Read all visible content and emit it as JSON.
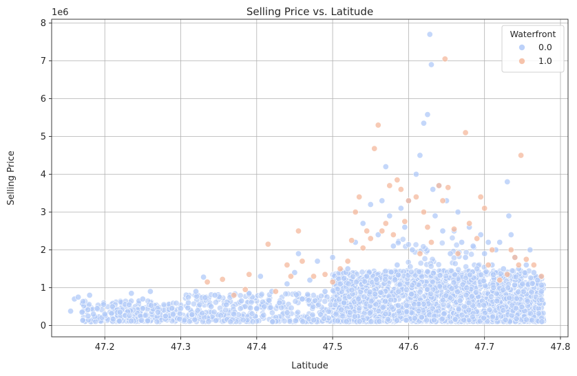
{
  "chart_data": {
    "type": "scatter",
    "title": "Selling Price vs. Latitude",
    "xlabel": "Latitude",
    "ylabel": "Selling Price",
    "y_offset_label": "1e6",
    "xlim": [
      47.13,
      47.81
    ],
    "ylim": [
      -0.3,
      8.1
    ],
    "x_ticks": [
      47.2,
      47.3,
      47.4,
      47.5,
      47.6,
      47.7,
      47.8
    ],
    "x_tick_labels": [
      "47.2",
      "47.3",
      "47.4",
      "47.5",
      "47.6",
      "47.7",
      "47.8"
    ],
    "y_ticks": [
      0,
      1,
      2,
      3,
      4,
      5,
      6,
      7,
      8
    ],
    "y_tick_labels": [
      "0",
      "1",
      "2",
      "3",
      "4",
      "5",
      "6",
      "7",
      "8"
    ],
    "grid": true,
    "legend": {
      "title": "Waterfront",
      "placement": "top-right",
      "entries": [
        "0.0",
        "1.0"
      ]
    },
    "series": [
      {
        "name": "0.0",
        "color": "#b0c9f8",
        "points": [
          [
            47.155,
            0.38
          ],
          [
            47.16,
            0.7
          ],
          [
            47.165,
            0.75
          ],
          [
            47.17,
            0.35
          ],
          [
            47.178,
            0.25
          ],
          [
            47.18,
            0.8
          ],
          [
            47.185,
            0.3
          ],
          [
            47.19,
            0.45
          ],
          [
            47.2,
            0.3
          ],
          [
            47.21,
            0.5
          ],
          [
            47.22,
            0.35
          ],
          [
            47.232,
            0.55
          ],
          [
            47.235,
            0.85
          ],
          [
            47.245,
            0.65
          ],
          [
            47.25,
            0.7
          ],
          [
            47.26,
            0.9
          ],
          [
            47.27,
            0.35
          ],
          [
            47.28,
            0.25
          ],
          [
            47.29,
            0.3
          ],
          [
            47.3,
            0.45
          ],
          [
            47.31,
            0.6
          ],
          [
            47.32,
            0.9
          ],
          [
            47.33,
            1.28
          ],
          [
            47.34,
            0.5
          ],
          [
            47.345,
            0.8
          ],
          [
            47.36,
            0.55
          ],
          [
            47.37,
            0.3
          ],
          [
            47.38,
            0.65
          ],
          [
            47.39,
            0.85
          ],
          [
            47.4,
            0.45
          ],
          [
            47.405,
            1.3
          ],
          [
            47.41,
            0.5
          ],
          [
            47.42,
            0.9
          ],
          [
            47.43,
            0.6
          ],
          [
            47.44,
            1.1
          ],
          [
            47.45,
            1.4
          ],
          [
            47.455,
            1.9
          ],
          [
            47.46,
            0.7
          ],
          [
            47.47,
            1.2
          ],
          [
            47.48,
            1.7
          ],
          [
            47.49,
            0.9
          ],
          [
            47.5,
            1.8
          ],
          [
            47.51,
            1.1
          ],
          [
            47.515,
            0.6
          ],
          [
            47.52,
            1.5
          ],
          [
            47.53,
            2.2
          ],
          [
            47.54,
            2.7
          ],
          [
            47.545,
            1.3
          ],
          [
            47.55,
            3.2
          ],
          [
            47.56,
            2.4
          ],
          [
            47.565,
            3.3
          ],
          [
            47.57,
            4.2
          ],
          [
            47.575,
            2.9
          ],
          [
            47.58,
            2.1
          ],
          [
            47.585,
            1.6
          ],
          [
            47.59,
            3.1
          ],
          [
            47.595,
            2.6
          ],
          [
            47.6,
            3.3
          ],
          [
            47.605,
            2.0
          ],
          [
            47.61,
            4.0
          ],
          [
            47.615,
            4.5
          ],
          [
            47.62,
            5.35
          ],
          [
            47.625,
            5.58
          ],
          [
            47.628,
            7.7
          ],
          [
            47.63,
            6.9
          ],
          [
            47.632,
            3.6
          ],
          [
            47.635,
            2.9
          ],
          [
            47.64,
            3.7
          ],
          [
            47.645,
            2.5
          ],
          [
            47.65,
            3.3
          ],
          [
            47.655,
            1.9
          ],
          [
            47.66,
            2.5
          ],
          [
            47.665,
            3.0
          ],
          [
            47.67,
            2.2
          ],
          [
            47.675,
            1.8
          ],
          [
            47.68,
            2.6
          ],
          [
            47.685,
            2.1
          ],
          [
            47.69,
            1.5
          ],
          [
            47.695,
            2.4
          ],
          [
            47.7,
            1.9
          ],
          [
            47.705,
            2.2
          ],
          [
            47.71,
            1.6
          ],
          [
            47.715,
            2.0
          ],
          [
            47.72,
            2.2
          ],
          [
            47.725,
            1.5
          ],
          [
            47.73,
            3.8
          ],
          [
            47.732,
            2.9
          ],
          [
            47.735,
            2.4
          ],
          [
            47.74,
            1.8
          ],
          [
            47.745,
            1.5
          ],
          [
            47.75,
            1.1
          ],
          [
            47.755,
            1.6
          ],
          [
            47.76,
            2.0
          ],
          [
            47.765,
            1.4
          ],
          [
            47.77,
            1.2
          ],
          [
            47.775,
            0.9
          ]
        ]
      },
      {
        "name": "1.0",
        "color": "#f4b89c",
        "points": [
          [
            47.335,
            1.15
          ],
          [
            47.355,
            1.22
          ],
          [
            47.37,
            0.8
          ],
          [
            47.385,
            0.95
          ],
          [
            47.39,
            1.35
          ],
          [
            47.415,
            2.15
          ],
          [
            47.425,
            0.9
          ],
          [
            47.44,
            1.6
          ],
          [
            47.445,
            1.3
          ],
          [
            47.455,
            2.5
          ],
          [
            47.46,
            1.7
          ],
          [
            47.475,
            1.3
          ],
          [
            47.49,
            1.35
          ],
          [
            47.5,
            1.15
          ],
          [
            47.51,
            1.5
          ],
          [
            47.52,
            1.7
          ],
          [
            47.525,
            2.25
          ],
          [
            47.53,
            3.0
          ],
          [
            47.535,
            3.4
          ],
          [
            47.54,
            2.05
          ],
          [
            47.545,
            2.5
          ],
          [
            47.55,
            2.3
          ],
          [
            47.555,
            4.68
          ],
          [
            47.56,
            5.3
          ],
          [
            47.565,
            2.5
          ],
          [
            47.57,
            2.7
          ],
          [
            47.575,
            3.7
          ],
          [
            47.58,
            2.4
          ],
          [
            47.585,
            3.85
          ],
          [
            47.59,
            3.6
          ],
          [
            47.595,
            2.75
          ],
          [
            47.6,
            3.3
          ],
          [
            47.61,
            3.4
          ],
          [
            47.615,
            1.9
          ],
          [
            47.62,
            3.0
          ],
          [
            47.625,
            2.6
          ],
          [
            47.63,
            2.2
          ],
          [
            47.64,
            3.7
          ],
          [
            47.645,
            3.3
          ],
          [
            47.648,
            7.05
          ],
          [
            47.652,
            3.65
          ],
          [
            47.66,
            2.55
          ],
          [
            47.665,
            1.9
          ],
          [
            47.675,
            5.1
          ],
          [
            47.68,
            2.7
          ],
          [
            47.69,
            2.3
          ],
          [
            47.695,
            3.4
          ],
          [
            47.7,
            3.1
          ],
          [
            47.705,
            1.6
          ],
          [
            47.71,
            2.0
          ],
          [
            47.72,
            1.2
          ],
          [
            47.73,
            1.35
          ],
          [
            47.735,
            2.0
          ],
          [
            47.74,
            1.8
          ],
          [
            47.745,
            1.6
          ],
          [
            47.748,
            4.5
          ],
          [
            47.755,
            1.75
          ],
          [
            47.765,
            1.6
          ],
          [
            47.775,
            1.3
          ]
        ]
      }
    ]
  }
}
